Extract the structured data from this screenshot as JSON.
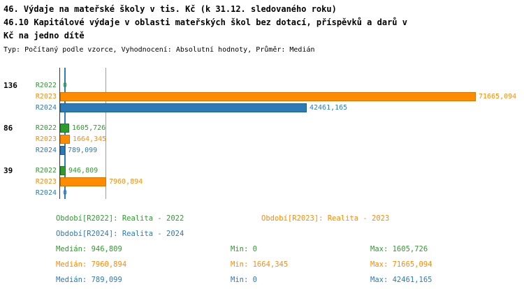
{
  "header": {
    "title_line1": "46. Výdaje na mateřské školy v tis. Kč (k 31.12. sledovaného roku)",
    "title_line2": "46.10 Kapitálové výdaje v oblasti mateřských škol bez dotací, příspěvků a darů v",
    "title_line3": "Kč na jedno dítě",
    "meta": "Typ: Počítaný podle vzorce, Vyhodnocení: Absolutní hodnoty, Průměr: Medián"
  },
  "colors": {
    "green": "#2e9b2e",
    "green_dark": "#1f7a1f",
    "orange": "#ff8c00",
    "orange_dark": "#d87400",
    "blue": "#2d7bb6",
    "blue_dark": "#1f5d8f",
    "axis": "#3a3a3a"
  },
  "chart_data": {
    "type": "bar",
    "orientation": "horizontal",
    "title": "46. Výdaje na mateřské školy v tis. Kč (k 31.12. sledovaného roku)",
    "subtitle": "46.10 Kapitálové výdaje v oblasti mateřských škol bez dotací, příspěvků a darů v Kč na jedno dítě",
    "average_type": "Medián",
    "xlim": [
      0,
      71665.094
    ],
    "grid": false,
    "categories": [
      "136",
      "86",
      "39"
    ],
    "series": [
      {
        "name": "R2022",
        "legend": "Období[R2022]: Realita - 2022",
        "color_key": "green",
        "border_key": "green_dark",
        "values": [
          0,
          1605.726,
          946.809
        ],
        "value_labels": [
          "0",
          "1605,726",
          "946,809"
        ],
        "median": 946.809,
        "min": 0,
        "max": 1605.726
      },
      {
        "name": "R2023",
        "legend": "Období[R2023]: Realita - 2023",
        "color_key": "orange",
        "border_key": "orange_dark",
        "values": [
          71665.094,
          1664.345,
          7960.894
        ],
        "value_labels": [
          "71665,094",
          "1664,345",
          "7960,894"
        ],
        "median": 7960.894,
        "min": 1664.345,
        "max": 71665.094
      },
      {
        "name": "R2024",
        "legend": "Období[R2024]: Realita - 2024",
        "color_key": "blue",
        "border_key": "blue_dark",
        "values": [
          42461.165,
          789.099,
          0
        ],
        "value_labels": [
          "42461,165",
          "789,099",
          "0"
        ],
        "median": 789.099,
        "min": 0,
        "max": 42461.165
      }
    ]
  },
  "legend": {
    "r2022": "Období[R2022]: Realita - 2022",
    "r2023": "Období[R2023]: Realita - 2023",
    "r2024": "Období[R2024]: Realita - 2024"
  },
  "stats": {
    "r2022": {
      "median": "Medián: 946,809",
      "min": "Min: 0",
      "max": "Max: 1605,726"
    },
    "r2023": {
      "median": "Medián: 7960,894",
      "min": "Min: 1664,345",
      "max": "Max: 71665,094"
    },
    "r2024": {
      "median": "Medián: 789,099",
      "min": "Min: 0",
      "max": "Max: 42461,165"
    }
  }
}
